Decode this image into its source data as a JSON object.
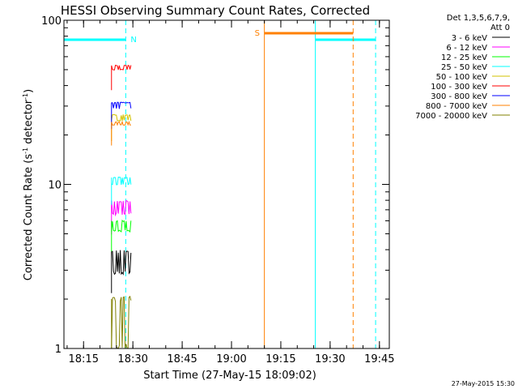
{
  "chart_data": {
    "type": "line",
    "title": "HESSI Observing Summary Count Rates, Corrected",
    "xlabel": "Start Time (27-May-15 18:09:02)",
    "ylabel_main": "Corrected Count Rate (s",
    "ylabel_sup1": "-1",
    "ylabel_mid": " detector",
    "ylabel_sup2": "-1",
    "ylabel_end": ")",
    "y_scale": "log",
    "ylim": [
      1,
      100
    ],
    "xlim": [
      "18:09:02",
      "19:48:00"
    ],
    "x_ticks": [
      "18:15",
      "18:30",
      "18:45",
      "19:00",
      "19:15",
      "19:30",
      "19:45"
    ],
    "y_ticks": [
      "1",
      "10",
      "100"
    ],
    "grid": false,
    "legend_position": "right",
    "legend_header": [
      "Det 1,3,5,6,7,9,",
      "Att 0"
    ],
    "series": [
      {
        "name": "3 - 6 keV",
        "color": "#000000",
        "x": [
          "18:23:30",
          "18:29:30"
        ],
        "y": [
          2.9,
          3.9
        ]
      },
      {
        "name": "6 - 12 keV",
        "color": "#ff00ff",
        "x": [
          "18:23:30",
          "18:29:30"
        ],
        "y": [
          6.6,
          7.9
        ]
      },
      {
        "name": "12 - 25 keV",
        "color": "#00ff00",
        "x": [
          "18:23:30",
          "18:29:30"
        ],
        "y": [
          5.2,
          6.0
        ]
      },
      {
        "name": "25 - 50 keV",
        "color": "#00ffff",
        "x": [
          "18:23:30",
          "18:29:30"
        ],
        "y": [
          10.0,
          11.0
        ]
      },
      {
        "name": "50 - 100 keV",
        "color": "#d2c200",
        "x": [
          "18:23:30",
          "18:29:30"
        ],
        "y": [
          24.5,
          26.5
        ]
      },
      {
        "name": "100 - 300 keV",
        "color": "#ff0000",
        "x": [
          "18:23:30",
          "18:29:30"
        ],
        "y": [
          50.0,
          53.0
        ]
      },
      {
        "name": "300 - 800 keV",
        "color": "#0000ff",
        "x": [
          "18:23:30",
          "18:29:30"
        ],
        "y": [
          29.0,
          31.5
        ]
      },
      {
        "name": "800 - 7000 keV",
        "color": "#ff8000",
        "x": [
          "18:23:30",
          "18:29:30"
        ],
        "y": [
          23.0,
          24.0
        ]
      },
      {
        "name": "7000 - 20000 keV",
        "color": "#808000",
        "x": [
          "18:23:30",
          "18:29:30"
        ],
        "y": [
          1.0,
          2.0
        ]
      }
    ],
    "annotations": {
      "night_label": "N",
      "saa_label": "S",
      "night_color": "#00ffff",
      "saa_color": "#ff8000",
      "night_intervals": [
        [
          "18:09:02",
          "18:27:50"
        ],
        [
          "19:25:30",
          "19:43:50"
        ]
      ],
      "saa_intervals": [
        [
          "19:10:00",
          "19:37:00"
        ]
      ]
    }
  },
  "footer_timestamp": "27-May-2015 15:30"
}
